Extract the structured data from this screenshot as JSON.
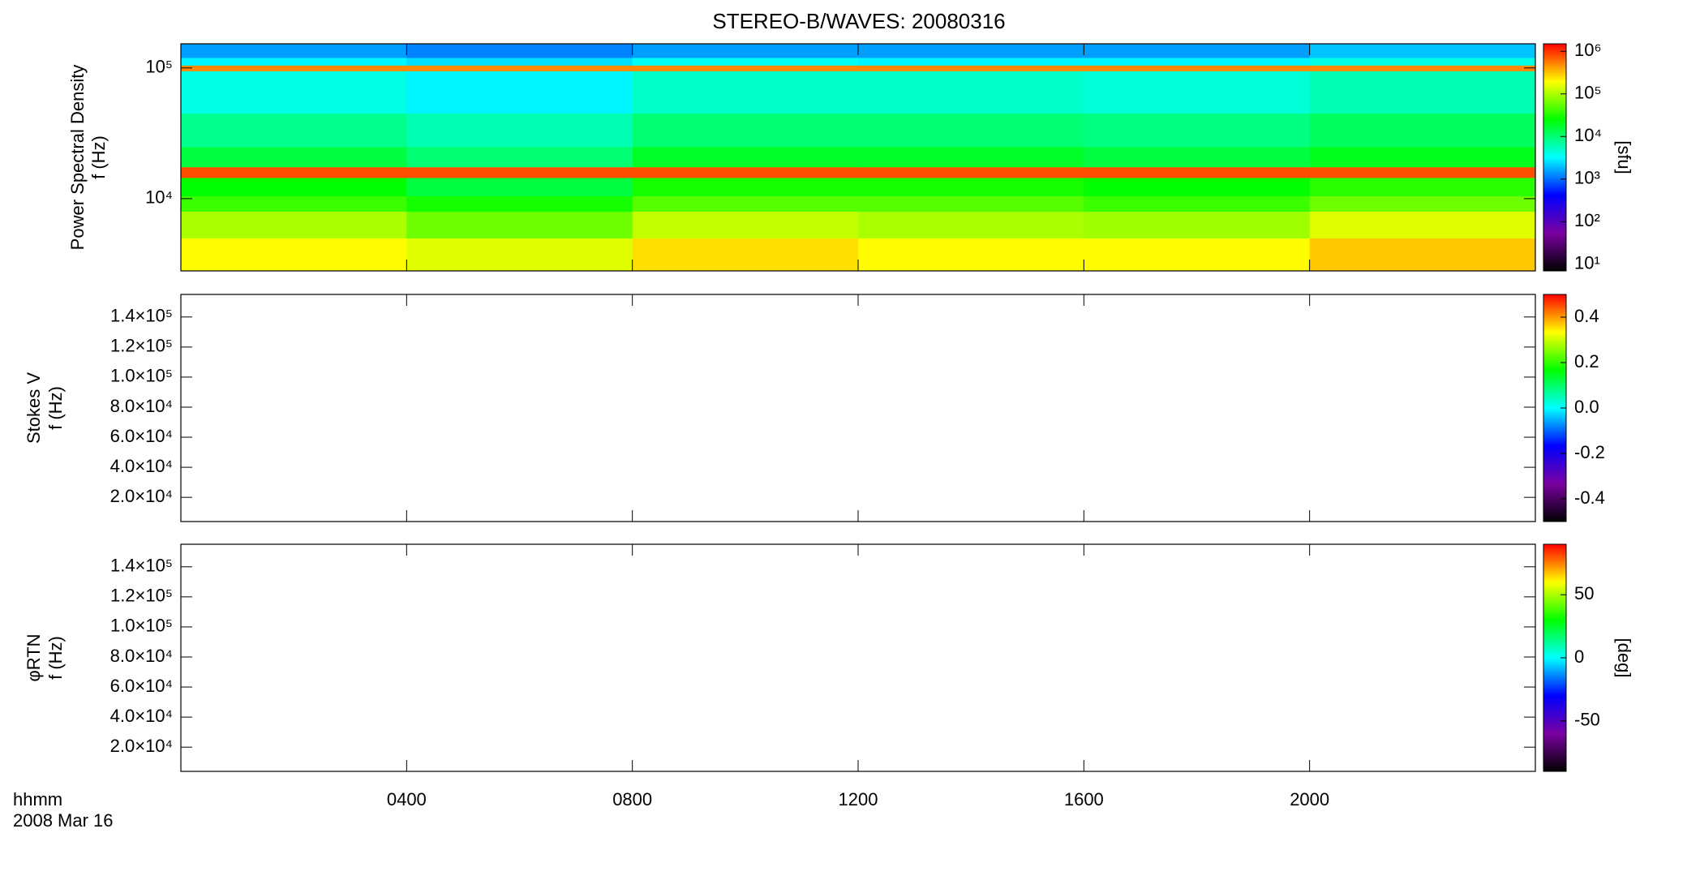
{
  "chart_data": [
    {
      "type": "heatmap",
      "title": "STEREO-B/WAVES: 20080316",
      "ylabel": [
        "Power Spectral Density",
        "f (Hz)"
      ],
      "xlim": [
        0,
        24
      ],
      "ylim": [
        2800,
        153000
      ],
      "ylog": true,
      "yticks": [
        {
          "value": 10000,
          "label": "10⁴"
        },
        {
          "value": 100000,
          "label": "10⁵"
        }
      ],
      "x_edges": [
        0,
        4,
        8,
        12,
        16,
        20,
        24
      ],
      "y_edges": [
        2800,
        5000,
        8000,
        10500,
        14500,
        17500,
        25000,
        45000,
        95000,
        105000,
        120000,
        153000
      ],
      "z": [
        [
          200000,
          150000,
          250000,
          200000,
          200000,
          300000
        ],
        [
          100000,
          60000,
          120000,
          100000,
          90000,
          150000
        ],
        [
          40000,
          30000,
          50000,
          50000,
          40000,
          60000
        ],
        [
          25000,
          15000,
          30000,
          30000,
          25000,
          35000
        ],
        [
          800000,
          800000,
          800000,
          800000,
          800000,
          800000
        ],
        [
          15000,
          10000,
          18000,
          18000,
          15000,
          20000
        ],
        [
          8000,
          6000,
          10000,
          10000,
          9000,
          12000
        ],
        [
          4000,
          3000,
          5000,
          5000,
          4500,
          6000
        ],
        [
          500000,
          500000,
          500000,
          500000,
          500000,
          500000
        ],
        [
          3000,
          2500,
          3500,
          3000,
          3000,
          4000
        ],
        [
          1500,
          1200,
          1500,
          1500,
          1500,
          2000
        ]
      ],
      "colormap": [
        "#000000",
        "#7a00a0",
        "#0000ff",
        "#00ffff",
        "#00ff00",
        "#ffff00",
        "#ff0000"
      ],
      "colorbar": {
        "label": "[sfu]",
        "log": true,
        "lim": [
          7,
          1500000
        ],
        "ticks": [
          {
            "value": 10,
            "label": "10¹"
          },
          {
            "value": 100,
            "label": "10²"
          },
          {
            "value": 1000,
            "label": "10³"
          },
          {
            "value": 10000,
            "label": "10⁴"
          },
          {
            "value": 100000,
            "label": "10⁵"
          },
          {
            "value": 1000000,
            "label": "10⁶"
          }
        ]
      }
    },
    {
      "type": "heatmap",
      "ylabel": [
        "Stokes V",
        "f (Hz)"
      ],
      "xlim": [
        0,
        24
      ],
      "ylim": [
        3900,
        155000
      ],
      "yticks": [
        {
          "value": 20000,
          "label": "2.0×10⁴"
        },
        {
          "value": 40000,
          "label": "4.0×10⁴"
        },
        {
          "value": 60000,
          "label": "6.0×10⁴"
        },
        {
          "value": 80000,
          "label": "8.0×10⁴"
        },
        {
          "value": 100000,
          "label": "1.0×10⁵"
        },
        {
          "value": 120000,
          "label": "1.2×10⁵"
        },
        {
          "value": 140000,
          "label": "1.4×10⁵"
        }
      ],
      "colormap": [
        "#000000",
        "#7a00a0",
        "#0000ff",
        "#00ffff",
        "#00ff00",
        "#ffff00",
        "#ff0000"
      ],
      "colorbar": {
        "lim": [
          -0.5,
          0.5
        ],
        "ticks": [
          -0.4,
          -0.2,
          {
            "value": 0,
            "label": "0.0"
          },
          0.2,
          0.4
        ]
      }
    },
    {
      "type": "heatmap",
      "ylabel": [
        "φRTN",
        "f (Hz)"
      ],
      "xlim": [
        0,
        24
      ],
      "ylim": [
        3900,
        155000
      ],
      "yticks": [
        {
          "value": 20000,
          "label": "2.0×10⁴"
        },
        {
          "value": 40000,
          "label": "4.0×10⁴"
        },
        {
          "value": 60000,
          "label": "6.0×10⁴"
        },
        {
          "value": 80000,
          "label": "8.0×10⁴"
        },
        {
          "value": 100000,
          "label": "1.0×10⁵"
        },
        {
          "value": 120000,
          "label": "1.2×10⁵"
        },
        {
          "value": 140000,
          "label": "1.4×10⁵"
        }
      ],
      "xlabel": "hhmm",
      "date_label": "2008 Mar 16",
      "xticks": [
        {
          "value": 4,
          "label": "0400"
        },
        {
          "value": 8,
          "label": "0800"
        },
        {
          "value": 12,
          "label": "1200"
        },
        {
          "value": 16,
          "label": "1600"
        },
        {
          "value": 20,
          "label": "2000"
        }
      ],
      "colormap": [
        "#000000",
        "#7a00a0",
        "#0000ff",
        "#00ffff",
        "#00ff00",
        "#ffff00",
        "#ff0000"
      ],
      "colorbar": {
        "label": "[deg]",
        "lim": [
          -90,
          90
        ],
        "ticks": [
          -50,
          0,
          50
        ]
      }
    }
  ]
}
